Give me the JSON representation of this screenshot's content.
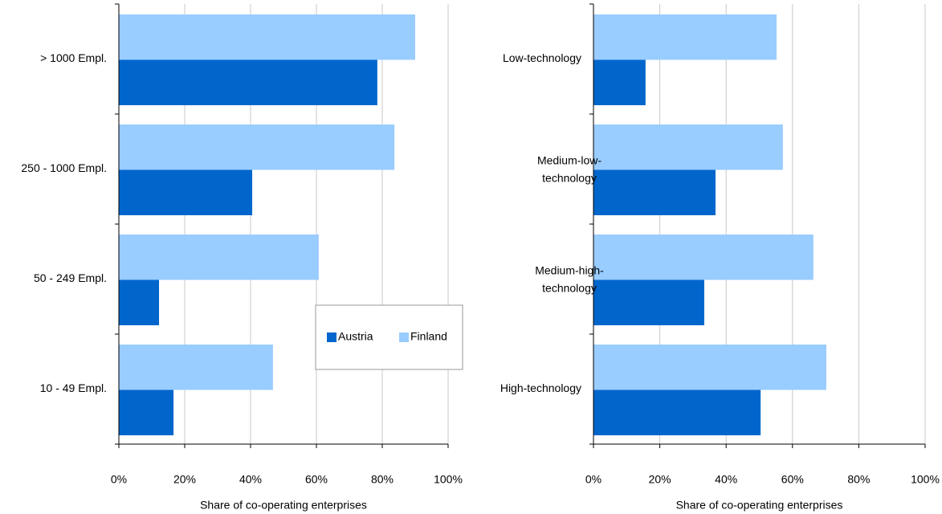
{
  "chart_data": [
    {
      "type": "barh",
      "categories": [
        "> 1000 Empl.",
        "250 - 1000 Empl.",
        "50 - 249 Empl.",
        "10 - 49 Empl."
      ],
      "series": [
        {
          "name": "Austria",
          "color": "#0066cc",
          "values": [
            78.5,
            40.5,
            12.2,
            16.6
          ]
        },
        {
          "name": "Finland",
          "color": "#99ccff",
          "values": [
            90,
            83.7,
            60.7,
            46.8
          ]
        }
      ],
      "xlabel": "Share of co-operating enterprises",
      "xlim": [
        0,
        100
      ],
      "xticks": [
        {
          "value": 0,
          "label": "0%"
        },
        {
          "value": 20,
          "label": "20%"
        },
        {
          "value": 40,
          "label": "40%"
        },
        {
          "value": 60,
          "label": "60%"
        },
        {
          "value": 80,
          "label": "80%"
        },
        {
          "value": 100,
          "label": "100%"
        }
      ],
      "grid": true,
      "legend": "lower right"
    },
    {
      "type": "barh",
      "categories": [
        "Low-technology",
        "Medium-low-technology",
        "Medium-high-technology",
        "High-technology"
      ],
      "series": [
        {
          "color": "#0066cc",
          "values": [
            15.7,
            36.8,
            33.4,
            50.4
          ]
        },
        {
          "color": "#99ccff",
          "values": [
            55.2,
            57.1,
            66.3,
            70.2
          ]
        }
      ],
      "xlabel": "Share of co-operating enterprises",
      "xlim": [
        0,
        100
      ],
      "xticks": [
        {
          "value": 0,
          "label": "0%"
        },
        {
          "value": 20,
          "label": "20%"
        },
        {
          "value": 40,
          "label": "40%"
        },
        {
          "value": 60,
          "label": "60%"
        },
        {
          "value": 80,
          "label": "80%"
        },
        {
          "value": 100,
          "label": "100%"
        }
      ],
      "grid": true
    }
  ]
}
